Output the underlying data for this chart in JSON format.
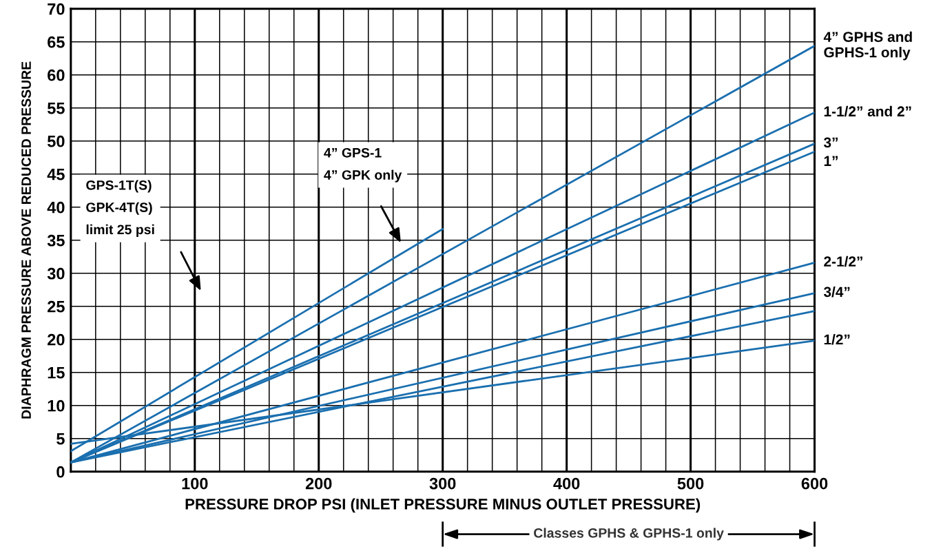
{
  "chart_data": {
    "type": "line",
    "xlabel": "PRESSURE DROP PSI (INLET PRESSURE MINUS OUTLET PRESSURE)",
    "ylabel": "DIAPHRAGM PRESSURE ABOVE REDUCED PRESSURE",
    "xlim": [
      0,
      600
    ],
    "xticks": [
      100,
      200,
      300,
      400,
      500,
      600
    ],
    "ylim": [
      0,
      70
    ],
    "yticks": [
      0,
      5,
      10,
      15,
      20,
      25,
      30,
      35,
      40,
      45,
      50,
      55,
      60,
      65,
      70
    ],
    "grid": true,
    "marker": "none",
    "line_style": "solid",
    "series": [
      {
        "name": "4” GPHS and\nGPHS-1 only",
        "color": "#1a6faf",
        "x": [
          0,
          600
        ],
        "values": [
          1.4,
          64.4
        ]
      },
      {
        "name": "1-1/2” and 2”",
        "color": "#1a6faf",
        "x": [
          0,
          600
        ],
        "values": [
          1.4,
          54.3
        ]
      },
      {
        "name": "3”",
        "color": "#1a6faf",
        "x": [
          0,
          600
        ],
        "values": [
          1.4,
          49.6
        ]
      },
      {
        "name": "1”",
        "color": "#1a6faf",
        "x": [
          0,
          600
        ],
        "values": [
          1.4,
          48.4
        ]
      },
      {
        "color": "#1a6faf",
        "x": [
          0,
          300
        ],
        "values": [
          3.1,
          36.7
        ]
      },
      {
        "name": "2-1/2”",
        "color": "#1a6faf",
        "x": [
          0,
          600
        ],
        "values": [
          1.4,
          31.6
        ]
      },
      {
        "name": "3/4”",
        "color": "#1a6faf",
        "x": [
          0,
          600
        ],
        "values": [
          1.4,
          27.0
        ]
      },
      {
        "color": "#1a6faf",
        "x": [
          0,
          600
        ],
        "values": [
          1.4,
          24.3
        ]
      },
      {
        "name": "1/2”",
        "color": "#1a6faf",
        "x": [
          0,
          600
        ],
        "values": [
          4.2,
          19.8
        ]
      }
    ],
    "annotations": [
      "GPS-1T(S)\nGPK-4T(S)\nlimit 25 psi",
      "4” GPS-1\n4” GPK only",
      "Classes GPHS & GPHS-1 only"
    ]
  }
}
